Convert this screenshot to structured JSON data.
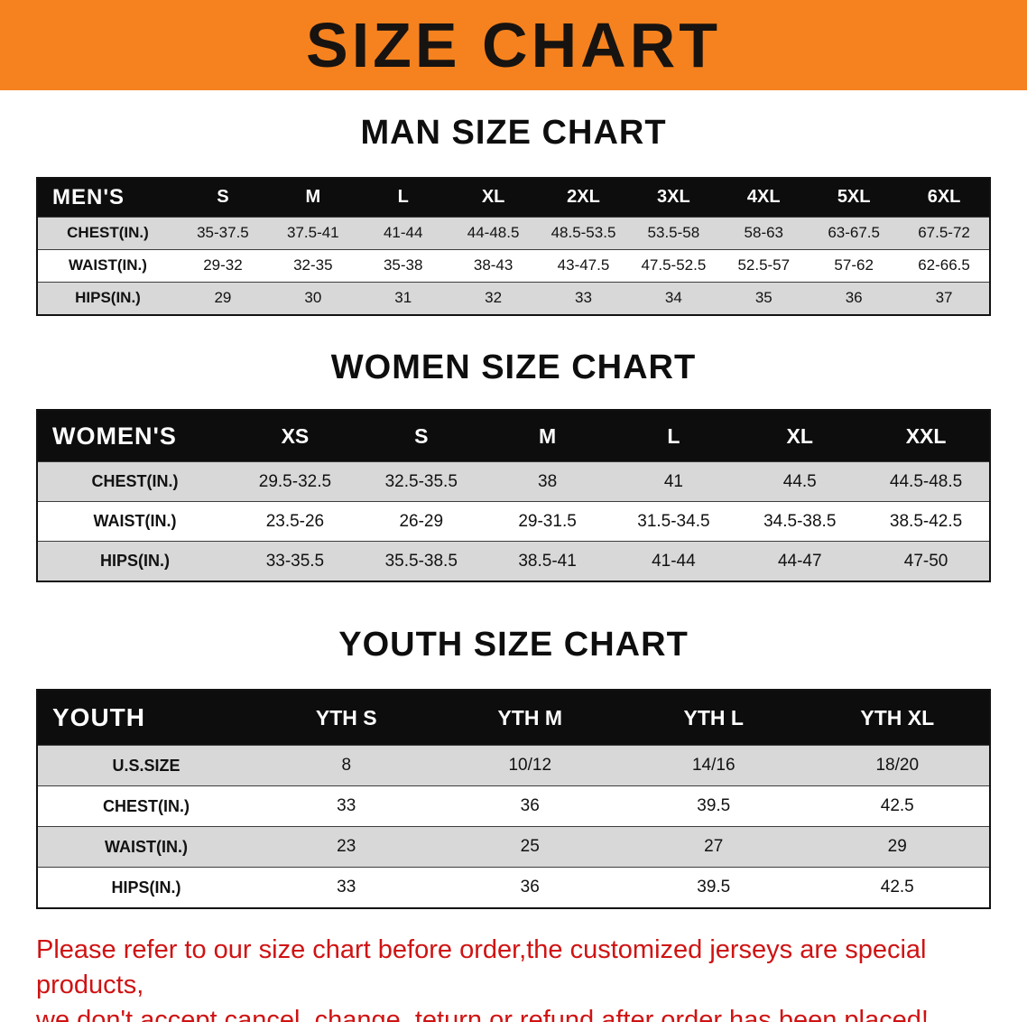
{
  "banner": {
    "title": "SIZE CHART"
  },
  "colors": {
    "banner_bg": "#f5821f",
    "header_bg": "#0d0d0d",
    "shaded_row": "#d8d8d8",
    "note_text": "#cf1313"
  },
  "men": {
    "heading": "MAN SIZE CHART",
    "label": "MEN'S",
    "columns": [
      "S",
      "M",
      "L",
      "XL",
      "2XL",
      "3XL",
      "4XL",
      "5XL",
      "6XL"
    ],
    "rows": [
      {
        "label": "CHEST(IN.)",
        "shaded": true,
        "values": [
          "35-37.5",
          "37.5-41",
          "41-44",
          "44-48.5",
          "48.5-53.5",
          "53.5-58",
          "58-63",
          "63-67.5",
          "67.5-72"
        ]
      },
      {
        "label": "WAIST(IN.)",
        "shaded": false,
        "values": [
          "29-32",
          "32-35",
          "35-38",
          "38-43",
          "43-47.5",
          "47.5-52.5",
          "52.5-57",
          "57-62",
          "62-66.5"
        ]
      },
      {
        "label": "HIPS(IN.)",
        "shaded": true,
        "values": [
          "29",
          "30",
          "31",
          "32",
          "33",
          "34",
          "35",
          "36",
          "37"
        ]
      }
    ]
  },
  "women": {
    "heading": "WOMEN SIZE CHART",
    "label": "WOMEN'S",
    "columns": [
      "XS",
      "S",
      "M",
      "L",
      "XL",
      "XXL"
    ],
    "rows": [
      {
        "label": "CHEST(IN.)",
        "shaded": true,
        "values": [
          "29.5-32.5",
          "32.5-35.5",
          "38",
          "41",
          "44.5",
          "44.5-48.5"
        ]
      },
      {
        "label": "WAIST(IN.)",
        "shaded": false,
        "values": [
          "23.5-26",
          "26-29",
          "29-31.5",
          "31.5-34.5",
          "34.5-38.5",
          "38.5-42.5"
        ]
      },
      {
        "label": "HIPS(IN.)",
        "shaded": true,
        "values": [
          "33-35.5",
          "35.5-38.5",
          "38.5-41",
          "41-44",
          "44-47",
          "47-50"
        ]
      }
    ]
  },
  "youth": {
    "heading": "YOUTH SIZE CHART",
    "label": "YOUTH",
    "columns": [
      "YTH S",
      "YTH M",
      "YTH L",
      "YTH XL"
    ],
    "rows": [
      {
        "label": "U.S.SIZE",
        "shaded": true,
        "values": [
          "8",
          "10/12",
          "14/16",
          "18/20"
        ]
      },
      {
        "label": "CHEST(IN.)",
        "shaded": false,
        "values": [
          "33",
          "36",
          "39.5",
          "42.5"
        ]
      },
      {
        "label": "WAIST(IN.)",
        "shaded": true,
        "values": [
          "23",
          "25",
          "27",
          "29"
        ]
      },
      {
        "label": "HIPS(IN.)",
        "shaded": false,
        "values": [
          "33",
          "36",
          "39.5",
          "42.5"
        ]
      }
    ]
  },
  "note": {
    "line1": "Please refer to our size chart before order,the customized jerseys are special products,",
    "line2": "we don't accept cancel, change, teturn or refund after order has been placed!"
  }
}
